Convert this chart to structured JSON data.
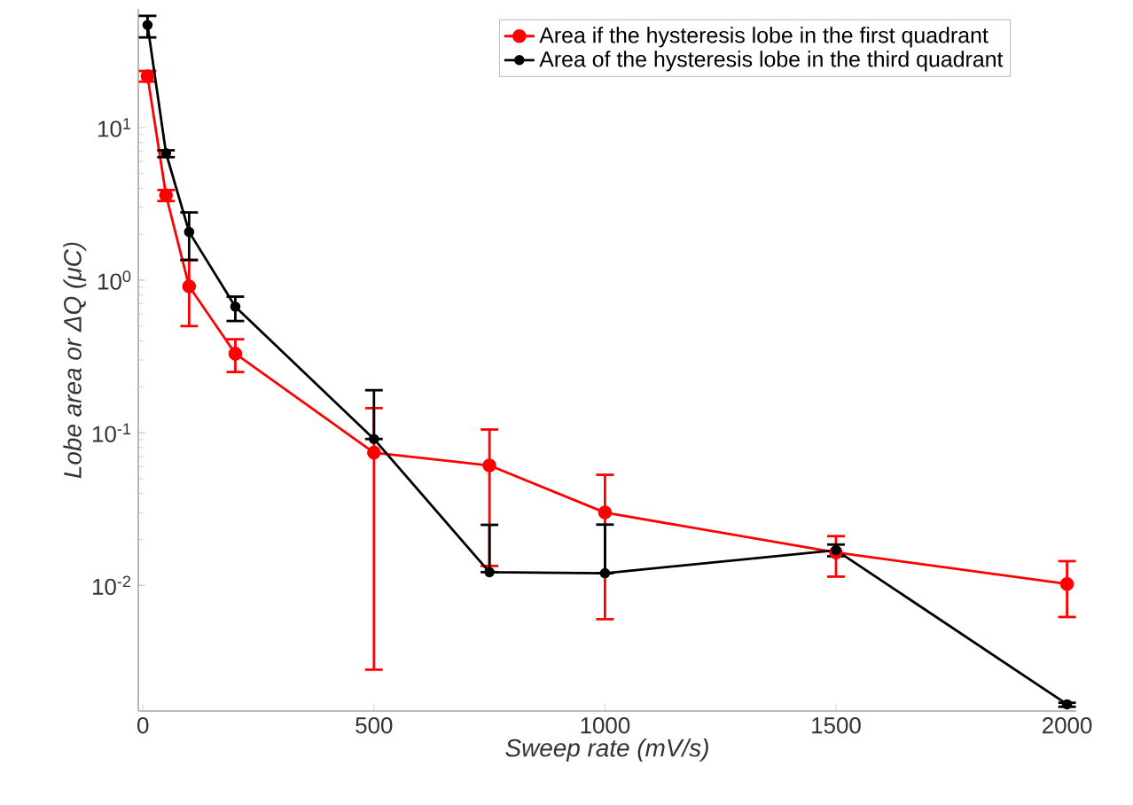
{
  "chart_data": {
    "type": "line",
    "xlabel": "Sweep rate (mV/s)",
    "ylabel": "Lobe area or ΔQ (μC)",
    "x": [
      10,
      50,
      100,
      200,
      500,
      750,
      1000,
      1500,
      2000
    ],
    "series": [
      {
        "name": "Area if the hysteresis lobe in the first quadrant",
        "color": "#ff0000",
        "values": [
          21.7,
          3.6,
          0.91,
          0.33,
          0.074,
          0.061,
          0.03,
          0.0164,
          0.0102
        ],
        "errors": [
          [
            20,
            23.5
          ],
          [
            3.3,
            3.9
          ],
          [
            0.5,
            1.35
          ],
          [
            0.25,
            0.41
          ],
          [
            0.0028,
            0.145
          ],
          [
            0.0134,
            0.105
          ],
          [
            0.006,
            0.053
          ],
          [
            0.0114,
            0.021
          ],
          [
            0.0062,
            0.0144
          ]
        ]
      },
      {
        "name": "Area of the hysteresis lobe in the third quadrant",
        "color": "#000000",
        "values": [
          47,
          6.8,
          2.07,
          0.67,
          0.091,
          0.0122,
          0.012,
          0.017,
          0.00166
        ],
        "errors": [
          [
            39,
            54
          ],
          [
            6.4,
            7.1
          ],
          [
            1.36,
            2.78
          ],
          [
            0.54,
            0.78
          ],
          [
            0.091,
            0.19
          ],
          [
            0.0122,
            0.0249
          ],
          [
            0.012,
            0.025
          ],
          [
            0.0155,
            0.0185
          ],
          [
            0.0016,
            0.0017
          ]
        ]
      }
    ],
    "log": "y",
    "xlim": [
      -10,
      2020
    ],
    "ylim": [
      0.0015,
      60
    ],
    "xticks": [
      0,
      500,
      1000,
      1500,
      2000
    ],
    "yticks": [
      {
        "value": 0.01,
        "label": "10$^{-2}$"
      },
      {
        "value": 0.1,
        "label": "10$^{-1}$"
      },
      {
        "value": 1,
        "label": "10$^{0}$"
      },
      {
        "value": 10,
        "label": "10$^{1}$"
      }
    ],
    "legend": "top right",
    "marker": "circle",
    "line_style": "solid",
    "grid": false
  }
}
